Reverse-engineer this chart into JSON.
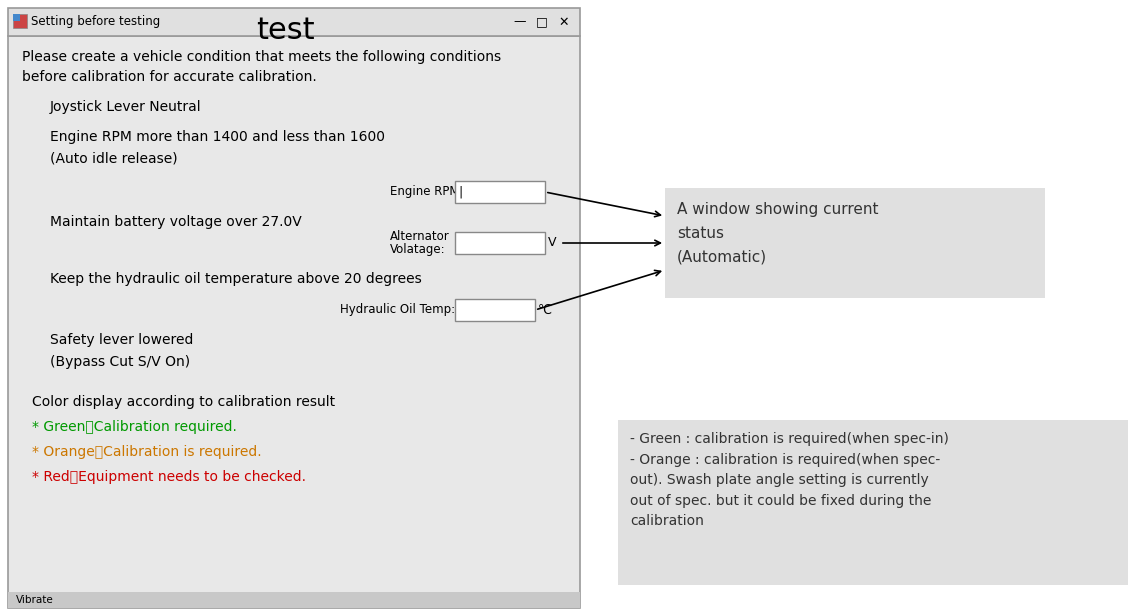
{
  "bg_color": "#ffffff",
  "title": "test",
  "title_fontsize": 22,
  "window_bg": "#e8e8e8",
  "window_border": "#999999",
  "window_title_text": "Setting before testing",
  "titlebar_bg": "#e0e0e0",
  "main_text_line1": "Please create a vehicle condition that meets the following conditions",
  "main_text_line2": "before calibration for accurate calibration.",
  "item1": "Joystick Lever Neutral",
  "item2a": "Engine RPM more than 1400 and less than 1600",
  "item2b": "(Auto idle release)",
  "item3": "Maintain battery voltage over 27.0V",
  "item4": "Keep the hydraulic oil temperature above 20 degrees",
  "item5a": "Safety lever lowered",
  "item5b": "(Bypass Cut S/V On)",
  "color_title": "Color display according to calibration result",
  "green_text": "* Green：Calibration required.",
  "orange_text": "* Orange：Calibration is required.",
  "red_text": "* Red：Equipment needs to be checked.",
  "green_color": "#009900",
  "orange_color": "#cc7700",
  "red_color": "#cc0000",
  "rpm_label": "Engine RPM:",
  "alt_label1": "Alternator",
  "alt_label2": "Volatage:",
  "hyd_label": "Hydraulic Oil Temp:",
  "volt_unit": "V",
  "temp_unit": "℃",
  "callout1_text_line1": "A window showing current",
  "callout1_text_line2": "status",
  "callout1_text_line3": "(Automatic)",
  "callout2_text": "- Green : calibration is required(when spec-in)\n- Orange : calibration is required(when spec-\nout). Swash plate angle setting is currently\nout of spec. but it could be fixed during the\ncalibration",
  "callout_bg": "#e0e0e0",
  "bottom_bar_text": "Vibrate"
}
